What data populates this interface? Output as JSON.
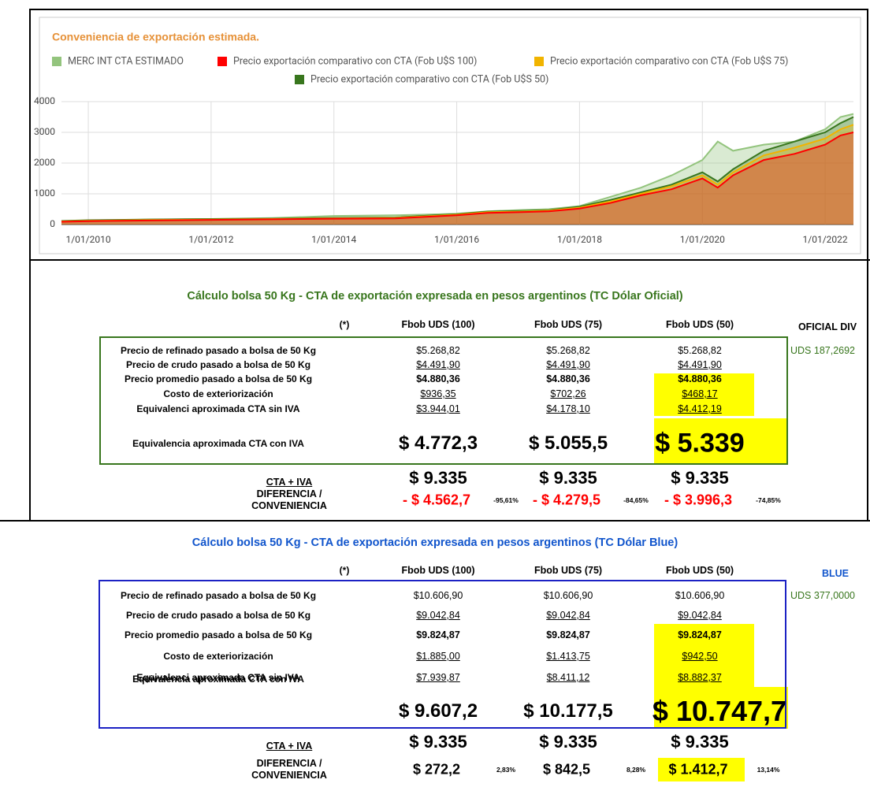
{
  "chart_data": {
    "type": "area",
    "title": "Conveniencia de exportación estimada.",
    "x": [
      "24/07/2009",
      "1/01/2010",
      "1/01/2011",
      "1/01/2012",
      "1/01/2013",
      "1/01/2014",
      "1/01/2015",
      "1/01/2016",
      "1/07/2016",
      "1/01/2017",
      "1/07/2017",
      "1/01/2018",
      "1/07/2018",
      "1/01/2019",
      "1/07/2019",
      "1/01/2020",
      "1/04/2020",
      "1/07/2020",
      "1/01/2021",
      "1/07/2021",
      "1/01/2022",
      "1/04/2022",
      "17/06/2022"
    ],
    "series": [
      {
        "name": "MERC INT CTA ESTIMADO",
        "color": "#93c47d",
        "values": [
          110,
          130,
          160,
          180,
          210,
          280,
          300,
          350,
          430,
          470,
          500,
          600,
          900,
          1200,
          1600,
          2100,
          2700,
          2400,
          2600,
          2700,
          3100,
          3500,
          3600
        ]
      },
      {
        "name": "Precio exportación comparativo con CTA (Fob U$S 100)",
        "color": "#ff0000",
        "values": [
          90,
          110,
          130,
          150,
          170,
          190,
          200,
          300,
          380,
          400,
          430,
          520,
          700,
          950,
          1150,
          1500,
          1200,
          1600,
          2100,
          2300,
          2600,
          2900,
          3000
        ]
      },
      {
        "name": "Precio exportación comparativo con CTA (Fob U$S 75)",
        "color": "#f1b400",
        "values": [
          100,
          120,
          145,
          160,
          180,
          200,
          215,
          320,
          400,
          420,
          450,
          550,
          750,
          1000,
          1250,
          1600,
          1300,
          1700,
          2250,
          2500,
          2800,
          3100,
          3250
        ]
      },
      {
        "name": "Precio exportación comparativo con CTA (Fob U$S 50)",
        "color": "#38761d",
        "values": [
          115,
          140,
          165,
          180,
          190,
          215,
          230,
          340,
          420,
          440,
          470,
          580,
          800,
          1050,
          1300,
          1700,
          1400,
          1800,
          2400,
          2700,
          3000,
          3300,
          3500
        ]
      }
    ],
    "xlim": [
      "24/07/2009",
      "17/06/2022"
    ],
    "xticks": [
      "1/01/2010",
      "1/01/2012",
      "1/01/2014",
      "1/01/2016",
      "1/01/2018",
      "1/01/2020",
      "1/01/2022"
    ],
    "ylim": [
      0,
      4000
    ],
    "yticks": [
      0,
      1000,
      2000,
      3000,
      4000
    ],
    "grid": true,
    "legend": "top"
  },
  "sections": [
    {
      "title": "Cálculo bolsa 50 Kg - CTA de exportación expresada en pesos argentinos (TC Dólar Oficial)",
      "note": "(*)",
      "columns": [
        "Fbob UDS (100)",
        "Fbob UDS (75)",
        "Fbob UDS (50)"
      ],
      "side_title": "OFICIAL DIV",
      "side_value": "UDS 187,2692",
      "rows": [
        {
          "label": "Precio de refinado pasado a bolsa de 50 Kg",
          "values": [
            "$5.268,82",
            "$5.268,82",
            "$5.268,82"
          ]
        },
        {
          "label": "Precio de crudo pasado a bolsa de 50 Kg",
          "values": [
            "$4.491,90",
            "$4.491,90",
            "$4.491,90"
          ]
        },
        {
          "label": "Precio promedio pasado a bolsa de 50 Kg",
          "values": [
            "$4.880,36",
            "$4.880,36",
            "$4.880,36"
          ]
        },
        {
          "label": "Costo de exteriorización",
          "values": [
            "$936,35",
            "$702,26",
            "$468,17"
          ]
        },
        {
          "label": "Equivalenci aproximada CTA sin IVA",
          "values": [
            "$3.944,01",
            "$4.178,10",
            "$4.412,19"
          ]
        }
      ],
      "iva": {
        "label": "Equivalencia aproximada CTA con IVA",
        "values": [
          "$ 4.772,3",
          "$ 5.055,5",
          "$ 5.339"
        ]
      },
      "cta": {
        "label": "CTA + IVA",
        "values": [
          "$ 9.335",
          "$ 9.335",
          "$ 9.335"
        ]
      },
      "diff": {
        "label": "DIFERENCIA / CONVENIENCIA",
        "values": [
          "- $ 4.562,7",
          "- $ 4.279,5",
          "- $ 3.996,3"
        ],
        "pcts": [
          "-95,61%",
          "-84,65%",
          "-74,85%"
        ]
      }
    },
    {
      "title": "Cálculo bolsa 50 Kg - CTA de exportación expresada en pesos argentinos (TC Dólar Blue)",
      "note": "(*)",
      "columns": [
        "Fbob UDS (100)",
        "Fbob UDS (75)",
        "Fbob UDS (50)"
      ],
      "side_title": "BLUE",
      "side_value": "UDS 377,0000",
      "rows": [
        {
          "label": "Precio de refinado pasado a bolsa de 50 Kg",
          "values": [
            "$10.606,90",
            "$10.606,90",
            "$10.606,90"
          ]
        },
        {
          "label": "Precio de crudo pasado a bolsa de 50 Kg",
          "values": [
            "$9.042,84",
            "$9.042,84",
            "$9.042,84"
          ]
        },
        {
          "label": "Precio promedio pasado a bolsa de 50 Kg",
          "values": [
            "$9.824,87",
            "$9.824,87",
            "$9.824,87"
          ]
        },
        {
          "label": "Costo de exteriorización",
          "values": [
            "$1.885,00",
            "$1.413,75",
            "$942,50"
          ]
        },
        {
          "label": "Equivalenci aproximada CTA sin IVA",
          "values": [
            "$7.939,87",
            "$8.411,12",
            "$8.882,37"
          ]
        }
      ],
      "iva": {
        "label": "Equivalencia aproximada CTA con IVA",
        "values": [
          "$ 9.607,2",
          "$ 10.177,5",
          "$ 10.747,7"
        ]
      },
      "cta": {
        "label": "CTA + IVA",
        "values": [
          "$ 9.335",
          "$ 9.335",
          "$ 9.335"
        ]
      },
      "diff": {
        "label": "DIFERENCIA / CONVENIENCIA",
        "values": [
          "$ 272,2",
          "$ 842,5",
          "$ 1.412,7"
        ],
        "pcts": [
          "2,83%",
          "8,28%",
          "13,14%"
        ]
      }
    }
  ]
}
